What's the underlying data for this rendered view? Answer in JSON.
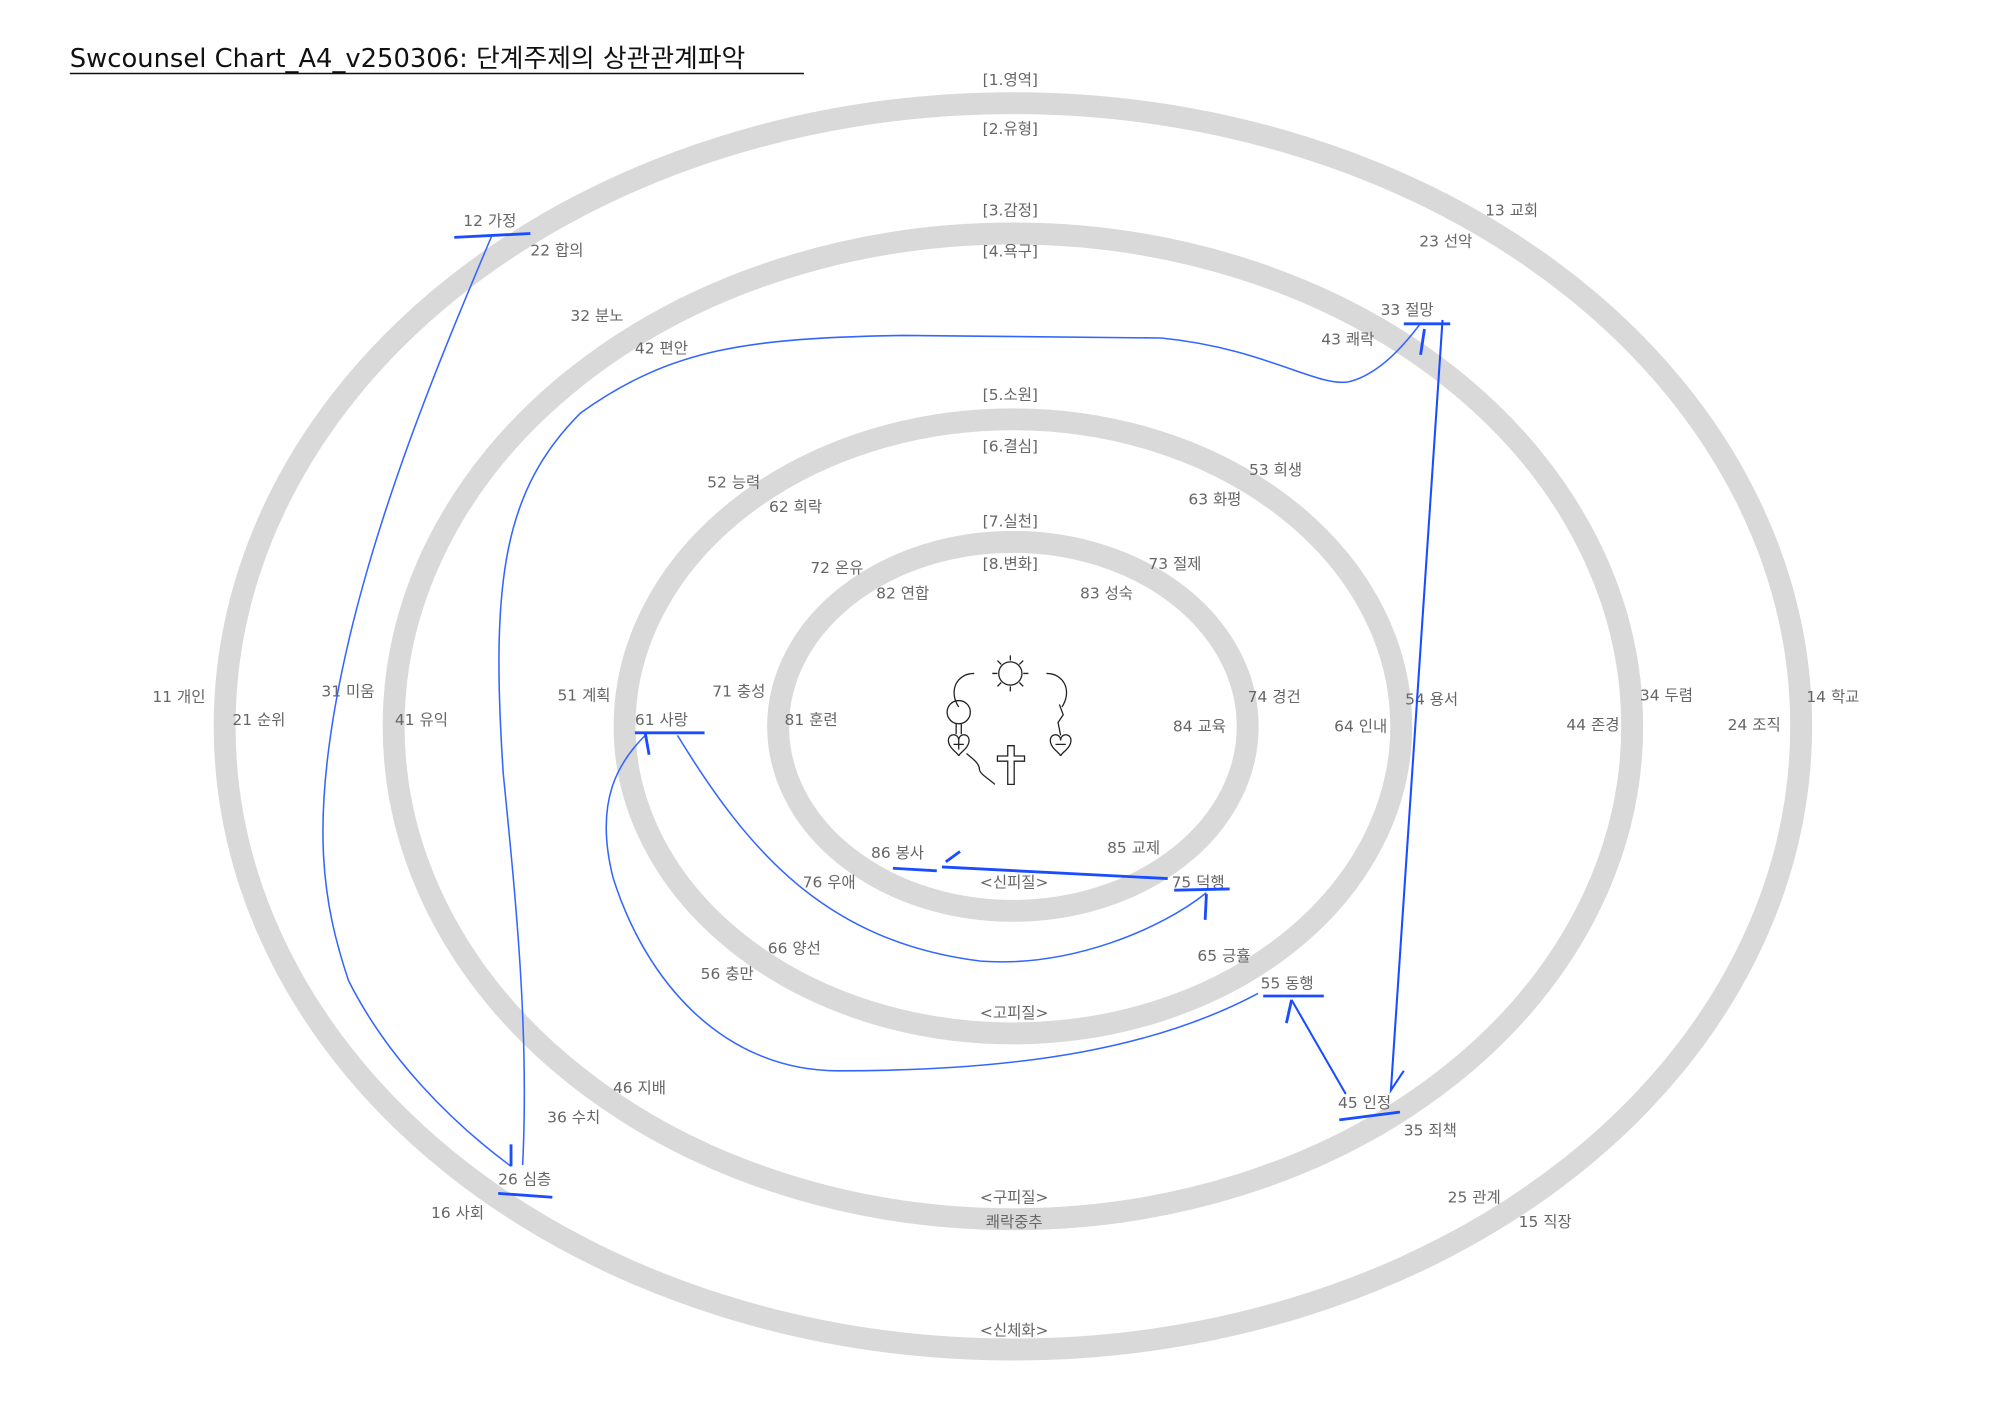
{
  "title": "Swcounsel Chart_A4_v250306: 단계주제의 상관관계파악",
  "colors": {
    "ring": "#d9d9d9",
    "link": "#3366ff",
    "text": "#666666"
  },
  "ring_headings": [
    "[1.영역]",
    "[2.유형]",
    "[3.감정]",
    "[4.욕구]",
    "[5.소원]",
    "[6.결심]",
    "[7.실천]",
    "[8.변화]"
  ],
  "zone_labels": [
    "<신피질>",
    "<고피질>",
    "<구피질>",
    "쾌락중추",
    "<신체화>"
  ],
  "items": {
    "i11": "11 개인",
    "i12": "12 가정",
    "i13": "13 교회",
    "i14": "14 학교",
    "i15": "15 직장",
    "i16": "16 사회",
    "i21": "21 순위",
    "i22": "22 합의",
    "i23": "23 선악",
    "i24": "24 조직",
    "i25": "25 관계",
    "i26": "26 심층",
    "i31": "31 미움",
    "i32": "32 분노",
    "i33": "33 절망",
    "i34": "34 두렴",
    "i35": "35 죄책",
    "i36": "36 수치",
    "i41": "41 유익",
    "i42": "42 편안",
    "i43": "43 쾌락",
    "i44": "44 존경",
    "i45": "45 인정",
    "i46": "46 지배",
    "i51": "51 계획",
    "i52": "52 능력",
    "i53": "53 희생",
    "i54": "54 용서",
    "i55": "55 동행",
    "i56": "56 충만",
    "i61": "61 사랑",
    "i62": "62 희락",
    "i63": "63 화평",
    "i64": "64 인내",
    "i65": "65 긍휼",
    "i66": "66 양선",
    "i71": "71 충성",
    "i72": "72 온유",
    "i73": "73 절제",
    "i74": "74 경건",
    "i75": "75 덕행",
    "i76": "76 우애",
    "i81": "81 훈련",
    "i82": "82 연합",
    "i83": "83 성숙",
    "i84": "84 교육",
    "i85": "85 교제",
    "i86": "86 봉사"
  },
  "highlighted_items": [
    "12 가정",
    "26 심층",
    "33 절망",
    "45 인정",
    "55 동행",
    "61 사랑",
    "75 덕행",
    "86 봉사"
  ],
  "center_diagram": {
    "icons": [
      "sun-icon",
      "tree-icon",
      "heart-plus-icon",
      "heart-minus-icon",
      "cross-icon",
      "dead-branch-icon"
    ]
  }
}
